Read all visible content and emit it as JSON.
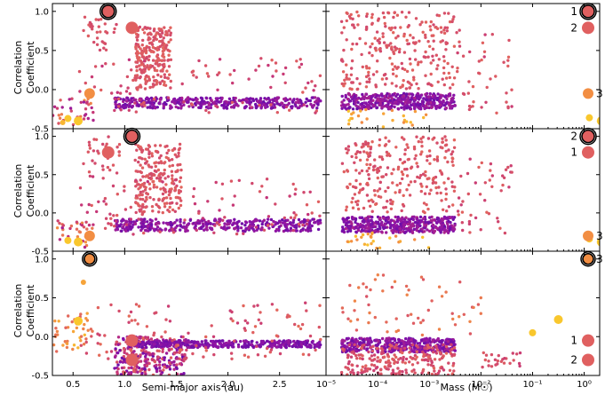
{
  "figure": {
    "ylabel_line1": "Correlation",
    "ylabel_line2": "Coefficient"
  },
  "chart_data": [
    {
      "type": "scatter",
      "panel": "row1-left",
      "xlabel": "",
      "ylabel": "Correlation Coefficient",
      "xlim": [
        0.3,
        2.95
      ],
      "ylim": [
        -0.5,
        1.1
      ],
      "x_ticks": [
        0.5,
        1.0,
        1.5,
        2.0,
        2.5
      ],
      "y_ticks": [
        -0.5,
        0.0,
        0.5,
        1.0
      ],
      "y_tick_labels": [
        "-0.5",
        "0.0",
        "0.5",
        "1.0"
      ],
      "color_scale": [
        "#4a0aa8",
        "#8a12a8",
        "#c2307a",
        "#e06060",
        "#f49340",
        "#fbd826"
      ],
      "highlights": [
        {
          "label": "1",
          "x": 1.07,
          "y": 0.79,
          "c": 0.6,
          "r": 7,
          "ring": false
        },
        {
          "label": "2",
          "x": 0.84,
          "y": 1.0,
          "c": 0.6,
          "r": 7,
          "ring": true
        },
        {
          "label": "3",
          "x": 0.66,
          "y": -0.05,
          "c": 0.78,
          "r": 6,
          "ring": false
        }
      ],
      "extra_points": [
        {
          "x": 0.55,
          "y": -0.4,
          "c": 0.95,
          "r": 5
        },
        {
          "x": 0.45,
          "y": -0.37,
          "c": 0.95,
          "r": 4
        },
        {
          "x": 0.4,
          "y": -0.42,
          "c": 0.9,
          "r": 3
        }
      ],
      "clusters": [
        {
          "n": 230,
          "x": [
            1.1,
            1.45
          ],
          "y": [
            0.0,
            0.8
          ],
          "c": [
            0.5,
            0.62
          ],
          "seed": 11
        },
        {
          "n": 380,
          "x": [
            0.9,
            2.9
          ],
          "y": [
            -0.24,
            -0.1
          ],
          "c": [
            0.1,
            0.3
          ],
          "seed": 12
        },
        {
          "n": 110,
          "x": [
            0.55,
            2.9
          ],
          "y": [
            -0.3,
            0.4
          ],
          "c": [
            0.4,
            0.6
          ],
          "seed": 13
        },
        {
          "n": 30,
          "x": [
            0.6,
            0.95
          ],
          "y": [
            0.5,
            1.0
          ],
          "c": [
            0.5,
            0.6
          ],
          "seed": 14
        },
        {
          "n": 30,
          "x": [
            0.3,
            0.7
          ],
          "y": [
            -0.45,
            -0.1
          ],
          "c": [
            0.25,
            0.8
          ],
          "seed": 15
        }
      ]
    },
    {
      "type": "scatter",
      "panel": "row1-right",
      "xlabel": "",
      "xscale": "log",
      "xlim": [
        -5,
        0.3
      ],
      "ylim": [
        -0.5,
        1.1
      ],
      "x_ticks": [
        -5,
        -4,
        -3,
        -2,
        -1,
        0
      ],
      "highlights": [
        {
          "label": "1",
          "x": 1.3,
          "y": 1.0,
          "c": 0.6,
          "r": 7,
          "ring": true
        },
        {
          "label": "2",
          "x": 1.3,
          "y": 0.79,
          "c": 0.6,
          "r": 7,
          "ring": false
        },
        {
          "label": "3",
          "x": 1.3,
          "y": -0.05,
          "c": 0.78,
          "r": 6,
          "ring": false
        }
      ],
      "extra_points": [
        {
          "x": 0.33,
          "y": -0.4,
          "c": 0.95,
          "r": 5
        },
        {
          "x": 0.1,
          "y": -0.36,
          "c": 0.95,
          "r": 4
        }
      ],
      "clusters": [
        {
          "n": 420,
          "x": [
            -4.7,
            -2.5
          ],
          "y": [
            -0.25,
            -0.05
          ],
          "c": [
            0.1,
            0.32
          ],
          "seed": 21
        },
        {
          "n": 260,
          "x": [
            -4.7,
            -2.5
          ],
          "y": [
            0.0,
            1.0
          ],
          "c": [
            0.5,
            0.62
          ],
          "seed": 22
        },
        {
          "n": 45,
          "x": [
            -2.5,
            -1.4
          ],
          "y": [
            -0.3,
            0.8
          ],
          "c": [
            0.45,
            0.62
          ],
          "seed": 23
        },
        {
          "n": 25,
          "x": [
            -4.6,
            -3.0
          ],
          "y": [
            -0.48,
            -0.25
          ],
          "c": [
            0.75,
            0.95
          ],
          "seed": 24
        }
      ]
    },
    {
      "type": "scatter",
      "panel": "row2-left",
      "xlabel": "",
      "ylabel": "Correlation Coefficient",
      "xlim": [
        0.3,
        2.95
      ],
      "ylim": [
        -0.5,
        1.1
      ],
      "x_ticks": [
        0.5,
        1.0,
        1.5,
        2.0,
        2.5
      ],
      "y_ticks": [
        -0.5,
        0.0,
        0.5,
        1.0
      ],
      "y_tick_labels": [
        "-0.5",
        "0.0",
        "0.5",
        "1.0"
      ],
      "highlights": [
        {
          "label": "1",
          "x": 0.84,
          "y": 0.79,
          "c": 0.6,
          "r": 7,
          "ring": false
        },
        {
          "label": "2",
          "x": 1.07,
          "y": 1.0,
          "c": 0.6,
          "r": 7,
          "ring": true
        },
        {
          "label": "3",
          "x": 0.66,
          "y": -0.3,
          "c": 0.78,
          "r": 6,
          "ring": false
        }
      ],
      "extra_points": [
        {
          "x": 0.55,
          "y": -0.38,
          "c": 0.95,
          "r": 5
        },
        {
          "x": 0.45,
          "y": -0.36,
          "c": 0.95,
          "r": 4
        }
      ],
      "clusters": [
        {
          "n": 230,
          "x": [
            1.1,
            1.55
          ],
          "y": [
            0.0,
            0.9
          ],
          "c": [
            0.5,
            0.62
          ],
          "seed": 31
        },
        {
          "n": 380,
          "x": [
            0.9,
            2.9
          ],
          "y": [
            -0.24,
            -0.08
          ],
          "c": [
            0.1,
            0.3
          ],
          "seed": 32
        },
        {
          "n": 110,
          "x": [
            0.55,
            2.9
          ],
          "y": [
            -0.3,
            0.5
          ],
          "c": [
            0.4,
            0.6
          ],
          "seed": 33
        },
        {
          "n": 30,
          "x": [
            0.6,
            0.95
          ],
          "y": [
            0.5,
            1.0
          ],
          "c": [
            0.5,
            0.6
          ],
          "seed": 34
        },
        {
          "n": 30,
          "x": [
            0.3,
            0.7
          ],
          "y": [
            -0.45,
            -0.1
          ],
          "c": [
            0.25,
            0.8
          ],
          "seed": 35
        }
      ]
    },
    {
      "type": "scatter",
      "panel": "row2-right",
      "xlabel": "",
      "xscale": "log",
      "xlim": [
        -5,
        0.3
      ],
      "ylim": [
        -0.5,
        1.1
      ],
      "x_ticks": [
        -5,
        -4,
        -3,
        -2,
        -1,
        0
      ],
      "highlights": [
        {
          "label": "2",
          "x": 1.3,
          "y": 1.0,
          "c": 0.6,
          "r": 7,
          "ring": true
        },
        {
          "label": "1",
          "x": 1.3,
          "y": 0.79,
          "c": 0.6,
          "r": 7,
          "ring": false
        },
        {
          "label": "3",
          "x": 1.3,
          "y": -0.3,
          "c": 0.78,
          "r": 6,
          "ring": false
        }
      ],
      "extra_points": [
        {
          "x": 0.33,
          "y": -0.38,
          "c": 0.95,
          "r": 5
        },
        {
          "x": 0.1,
          "y": -0.34,
          "c": 0.95,
          "r": 4
        }
      ],
      "clusters": [
        {
          "n": 420,
          "x": [
            -4.7,
            -2.5
          ],
          "y": [
            -0.26,
            -0.05
          ],
          "c": [
            0.1,
            0.32
          ],
          "seed": 41
        },
        {
          "n": 260,
          "x": [
            -4.7,
            -2.5
          ],
          "y": [
            0.0,
            1.0
          ],
          "c": [
            0.5,
            0.62
          ],
          "seed": 42
        },
        {
          "n": 45,
          "x": [
            -2.5,
            -1.4
          ],
          "y": [
            -0.3,
            0.75
          ],
          "c": [
            0.45,
            0.62
          ],
          "seed": 43
        },
        {
          "n": 25,
          "x": [
            -4.6,
            -3.0
          ],
          "y": [
            -0.48,
            -0.25
          ],
          "c": [
            0.75,
            0.95
          ],
          "seed": 44
        }
      ]
    },
    {
      "type": "scatter",
      "panel": "row3-left",
      "xlabel": "Semi-major axis (au)",
      "ylabel": "Correlation Coefficient",
      "xlim": [
        0.3,
        2.95
      ],
      "ylim": [
        -0.5,
        1.1
      ],
      "x_ticks": [
        0.5,
        1.0,
        1.5,
        2.0,
        2.5
      ],
      "x_tick_labels": [
        "0.5",
        "1.0",
        "1.5",
        "2.0",
        "2.5"
      ],
      "y_ticks": [
        -0.5,
        0.0,
        0.5,
        1.0
      ],
      "y_tick_labels": [
        "-0.5",
        "0.0",
        "0.5",
        "1.0"
      ],
      "highlights": [
        {
          "label": "1",
          "x": 1.07,
          "y": -0.05,
          "c": 0.6,
          "r": 7,
          "ring": false
        },
        {
          "label": "2",
          "x": 1.07,
          "y": -0.3,
          "c": 0.6,
          "r": 7,
          "ring": false
        },
        {
          "label": "3",
          "x": 0.66,
          "y": 1.0,
          "c": 0.78,
          "r": 6,
          "ring": true
        }
      ],
      "extra_points": [
        {
          "x": 0.55,
          "y": 0.2,
          "c": 0.95,
          "r": 5
        },
        {
          "x": 0.6,
          "y": 0.7,
          "c": 0.85,
          "r": 3
        }
      ],
      "clusters": [
        {
          "n": 300,
          "x": [
            0.9,
            1.6
          ],
          "y": [
            -0.5,
            0.0
          ],
          "c": [
            0.1,
            0.6
          ],
          "seed": 51
        },
        {
          "n": 380,
          "x": [
            1.05,
            2.9
          ],
          "y": [
            -0.14,
            -0.05
          ],
          "c": [
            0.1,
            0.25
          ],
          "seed": 52
        },
        {
          "n": 110,
          "x": [
            0.55,
            2.9
          ],
          "y": [
            -0.3,
            0.45
          ],
          "c": [
            0.45,
            0.65
          ],
          "seed": 53
        },
        {
          "n": 40,
          "x": [
            0.3,
            0.7
          ],
          "y": [
            -0.2,
            0.3
          ],
          "c": [
            0.6,
            0.9
          ],
          "seed": 54
        }
      ]
    },
    {
      "type": "scatter",
      "panel": "row3-right",
      "xlabel": "Mass (M☉)",
      "xscale": "log",
      "xlim": [
        -5,
        0.3
      ],
      "ylim": [
        -0.5,
        1.1
      ],
      "x_ticks": [
        -5,
        -4,
        -3,
        -2,
        -1,
        0
      ],
      "x_tick_labels": [
        "10⁻⁵",
        "10⁻⁴",
        "10⁻³",
        "10⁻²",
        "10⁻¹",
        "10⁰"
      ],
      "highlights": [
        {
          "label": "3",
          "x": 1.3,
          "y": 1.0,
          "c": 0.78,
          "r": 6,
          "ring": true
        },
        {
          "label": "1",
          "x": 1.3,
          "y": -0.05,
          "c": 0.6,
          "r": 7,
          "ring": false
        },
        {
          "label": "2",
          "x": 1.3,
          "y": -0.3,
          "c": 0.6,
          "r": 7,
          "ring": false
        }
      ],
      "extra_points": [
        {
          "x": -0.5,
          "y": 0.22,
          "c": 0.95,
          "r": 5
        },
        {
          "x": -1.0,
          "y": 0.05,
          "c": 0.95,
          "r": 4
        }
      ],
      "clusters": [
        {
          "n": 420,
          "x": [
            -4.7,
            -2.5
          ],
          "y": [
            -0.2,
            -0.02
          ],
          "c": [
            0.1,
            0.3
          ],
          "seed": 61
        },
        {
          "n": 230,
          "x": [
            -4.7,
            -2.5
          ],
          "y": [
            -0.5,
            -0.1
          ],
          "c": [
            0.45,
            0.62
          ],
          "seed": 62
        },
        {
          "n": 60,
          "x": [
            -4.7,
            -2.0
          ],
          "y": [
            0.0,
            0.8
          ],
          "c": [
            0.55,
            0.75
          ],
          "seed": 63
        },
        {
          "n": 25,
          "x": [
            -2.0,
            -1.2
          ],
          "y": [
            -0.4,
            -0.2
          ],
          "c": [
            0.45,
            0.6
          ],
          "seed": 64
        }
      ]
    }
  ]
}
